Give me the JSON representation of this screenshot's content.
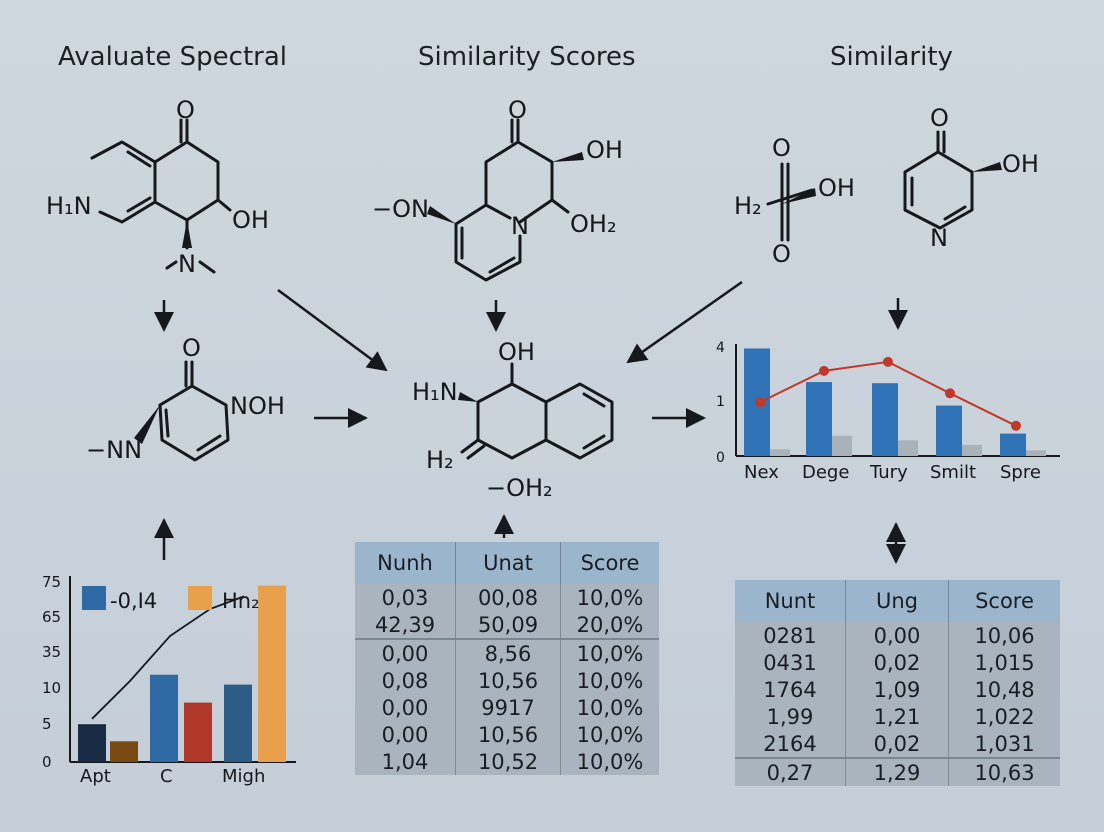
{
  "headings": {
    "left": "Avaluate Spectral",
    "center": "Similarity Scores",
    "right": "Similarity"
  },
  "molecules": {
    "m1": {
      "h1n": "H₁N",
      "o": "O",
      "oh": "OH",
      "n": "N"
    },
    "m2": {
      "on": "−ON",
      "o": "O",
      "oh": "OH",
      "n": "N",
      "oh2": "OH₂"
    },
    "m3": {
      "h2": "H₂",
      "oh": "OH",
      "o_top": "O",
      "o_bottom": "O"
    },
    "m4": {
      "o": "O",
      "oh": "OH",
      "n": "N"
    },
    "m5": {
      "o": "O",
      "noh": "NOH",
      "nn": "−NN"
    },
    "m6": {
      "oh": "OH",
      "h1n": "H₁N",
      "h2": "H₂",
      "oh2": "−OH₂"
    }
  },
  "chart_left": {
    "type": "bar",
    "ytick_labels": [
      "75",
      "65",
      "35",
      "10",
      "5",
      "0"
    ],
    "legend": [
      "-0,I4",
      "Hn₂"
    ],
    "xtick_labels": [
      "Apt",
      "C",
      "Migh"
    ],
    "colors": [
      "#1a2b45",
      "#7a4a14",
      "#2f6aa5",
      "#b0382a",
      "#2d5d86",
      "#e8a14a"
    ],
    "bar_levels": [
      0.21,
      0.115,
      0.485,
      0.33,
      0.43,
      0.98
    ],
    "curve_levels": [
      0.24,
      0.45,
      0.7,
      0.85,
      0.92
    ]
  },
  "chart_right": {
    "type": "bar",
    "ytick_labels": [
      "4",
      "1",
      "0"
    ],
    "categories": [
      "Nex",
      "Dege",
      "Tury",
      "Smilt",
      "Spre"
    ],
    "blue_levels": [
      0.96,
      0.66,
      0.65,
      0.45,
      0.2
    ],
    "gray_levels": [
      0.06,
      0.18,
      0.14,
      0.1,
      0.05
    ],
    "line_levels": [
      0.48,
      0.76,
      0.84,
      0.56,
      0.27
    ],
    "colors": {
      "bar": "#2f73b6",
      "gray": "#a9b1b9",
      "line": "#c0392b"
    }
  },
  "table_center": {
    "headers": [
      "Nunh",
      "Unat",
      "Score"
    ],
    "group1": [
      [
        "0,03",
        "00,08",
        "10,0%"
      ],
      [
        "42,39",
        "50,09",
        "20,0%"
      ]
    ],
    "group2": [
      [
        "0,00",
        "8,56",
        "10,0%"
      ],
      [
        "0,08",
        "10,56",
        "10,0%"
      ],
      [
        "0,00",
        "9917",
        "10,0%"
      ],
      [
        "0,00",
        "10,56",
        "10,0%"
      ],
      [
        "1,04",
        "10,52",
        "10,0%"
      ]
    ]
  },
  "table_right": {
    "headers": [
      "Nunt",
      "Ung",
      "Score"
    ],
    "group1": [
      [
        "0281",
        "0,00",
        "10,06"
      ],
      [
        "0431",
        "0,02",
        "1,015"
      ],
      [
        "1764",
        "1,09",
        "10,48"
      ],
      [
        "1,99",
        "1,21",
        "1,022"
      ],
      [
        "2164",
        "0,02",
        "1,031"
      ]
    ],
    "group2": [
      [
        "0,27",
        "1,29",
        "10,63"
      ]
    ]
  }
}
